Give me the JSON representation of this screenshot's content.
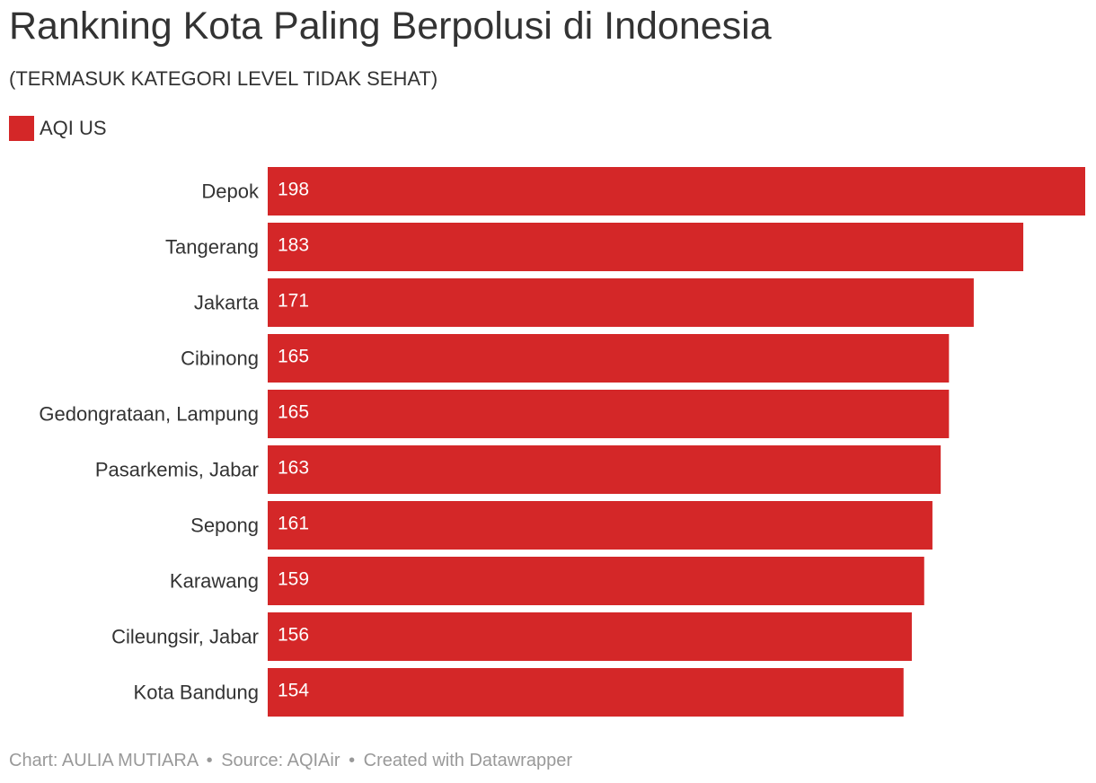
{
  "colors": {
    "bar": "#d42728",
    "label_in_bar": "#ffffff",
    "text": "#333333",
    "footer": "#999999"
  },
  "chart_data": {
    "type": "bar",
    "orientation": "horizontal",
    "title": "Rankning Kota Paling Berpolusi di Indonesia",
    "subtitle": "(TERMASUK KATEGORI LEVEL TIDAK SEHAT)",
    "legend": [
      "AQI US"
    ],
    "legend_position": "top-left",
    "grid": false,
    "xlim": [
      0,
      198
    ],
    "categories": [
      "Depok",
      "Tangerang",
      "Jakarta",
      "Cibinong",
      "Gedongrataan, Lampung",
      "Pasarkemis, Jabar",
      "Sepong",
      "Karawang",
      "Cileungsir, Jabar",
      "Kota Bandung"
    ],
    "series": [
      {
        "name": "AQI US",
        "values": [
          198,
          183,
          171,
          165,
          165,
          163,
          161,
          159,
          156,
          154
        ]
      }
    ]
  },
  "footer": {
    "chart": "Chart: AULIA MUTIARA",
    "separator": "•",
    "source": "Source: AQIAir",
    "created": "Created with Datawrapper"
  }
}
